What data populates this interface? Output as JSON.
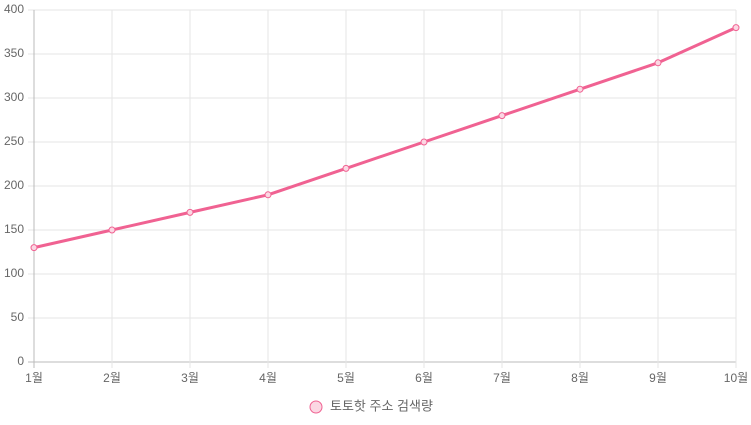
{
  "chart_data": {
    "type": "line",
    "categories": [
      "1월",
      "2월",
      "3월",
      "4월",
      "5월",
      "6월",
      "7월",
      "8월",
      "9월",
      "10월"
    ],
    "series": [
      {
        "name": "토토핫 주소 검색량",
        "color": "#f06292",
        "values": [
          130,
          150,
          170,
          190,
          220,
          250,
          280,
          310,
          340,
          380
        ]
      }
    ],
    "ylim": [
      0,
      400
    ],
    "yticks": [
      0,
      50,
      100,
      150,
      200,
      250,
      300,
      350,
      400
    ],
    "grid": true,
    "legend": "bottom"
  }
}
